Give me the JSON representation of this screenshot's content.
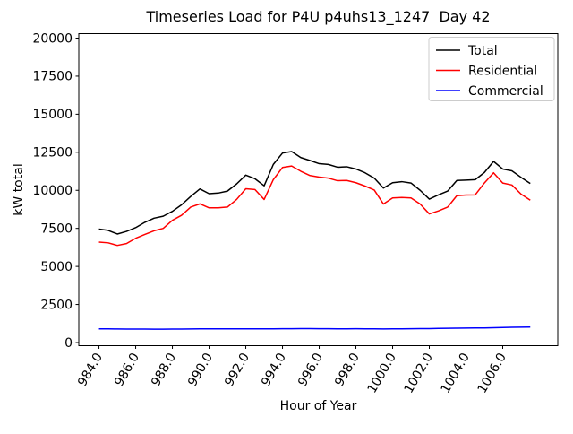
{
  "figure": {
    "background": "#ffffff",
    "frame_color": "#000000"
  },
  "chart_data": {
    "type": "line",
    "title": "Timeseries Load for P4U p4uhs13_1247  Day 42",
    "xlabel": "Hour of Year",
    "ylabel": "kW total",
    "grid": false,
    "legend_position": "upper right",
    "xlim": [
      982.9,
      1009.0
    ],
    "ylim": [
      0,
      20000
    ],
    "xtick_values": [
      984,
      986,
      988,
      990,
      992,
      994,
      996,
      998,
      1000,
      1002,
      1004,
      1006
    ],
    "xtick_labels": [
      "984.0",
      "986.0",
      "988.0",
      "990.0",
      "992.0",
      "994.0",
      "996.0",
      "998.0",
      "1000.0",
      "1002.0",
      "1004.0",
      "1006.0"
    ],
    "xtick_rotation": 60,
    "ytick_values": [
      0,
      2500,
      5000,
      7500,
      10000,
      12500,
      15000,
      17500,
      20000
    ],
    "ytick_labels": [
      "0",
      "2500",
      "5000",
      "7500",
      "10000",
      "12500",
      "15000",
      "17500",
      "20000"
    ],
    "x": [
      984.0,
      984.5,
      985.0,
      985.5,
      986.0,
      986.5,
      987.0,
      987.5,
      988.0,
      988.5,
      989.0,
      989.5,
      990.0,
      990.5,
      991.0,
      991.5,
      992.0,
      992.5,
      993.0,
      993.5,
      994.0,
      994.5,
      995.0,
      995.5,
      996.0,
      996.5,
      997.0,
      997.5,
      998.0,
      998.5,
      999.0,
      999.5,
      1000.0,
      1000.5,
      1001.0,
      1001.5,
      1002.0,
      1002.5,
      1003.0,
      1003.5,
      1004.0,
      1004.5,
      1005.0,
      1005.5,
      1006.0,
      1006.5,
      1007.0,
      1007.5
    ],
    "series": [
      {
        "name": "Total",
        "color": "#000000",
        "values": [
          7450,
          7370,
          7130,
          7300,
          7550,
          7900,
          8170,
          8300,
          8620,
          9050,
          9600,
          10090,
          9780,
          9820,
          9950,
          10420,
          11000,
          10760,
          10300,
          11700,
          12450,
          12550,
          12150,
          11960,
          11750,
          11700,
          11520,
          11550,
          11400,
          11150,
          10800,
          10150,
          10500,
          10570,
          10480,
          10000,
          9420,
          9700,
          9950,
          10650,
          10670,
          10700,
          11170,
          11900,
          11400,
          11280,
          10850,
          10450
        ]
      },
      {
        "name": "Residential",
        "color": "#ff0000",
        "values": [
          6600,
          6550,
          6380,
          6500,
          6850,
          7100,
          7340,
          7500,
          8030,
          8360,
          8900,
          9110,
          8850,
          8850,
          8900,
          9400,
          10100,
          10050,
          9400,
          10700,
          11500,
          11600,
          11250,
          10970,
          10870,
          10800,
          10630,
          10650,
          10500,
          10280,
          10020,
          9100,
          9500,
          9530,
          9500,
          9100,
          8450,
          8650,
          8900,
          9650,
          9690,
          9700,
          10480,
          11150,
          10480,
          10350,
          9750,
          9350
        ]
      },
      {
        "name": "Commercial",
        "color": "#0000ff",
        "values": [
          900,
          895,
          890,
          885,
          880,
          880,
          875,
          875,
          880,
          885,
          890,
          895,
          900,
          900,
          895,
          895,
          900,
          900,
          895,
          900,
          905,
          905,
          910,
          910,
          905,
          905,
          900,
          900,
          905,
          900,
          895,
          890,
          895,
          900,
          905,
          910,
          915,
          925,
          935,
          945,
          950,
          955,
          960,
          970,
          985,
          1000,
          1010,
          1020
        ]
      }
    ]
  }
}
